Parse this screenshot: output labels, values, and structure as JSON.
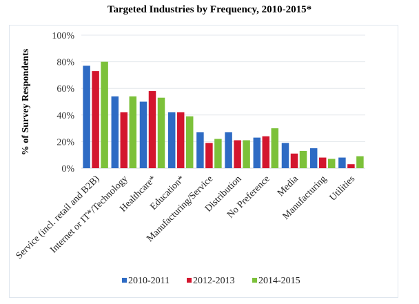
{
  "chart_data": {
    "type": "bar",
    "title": "Targeted Industries by Frequency, 2010-2015*",
    "xlabel": "",
    "ylabel": "% of Survey Respondents",
    "ylim": [
      0,
      100
    ],
    "yticks": [
      "0%",
      "20%",
      "40%",
      "60%",
      "80%",
      "100%"
    ],
    "ytick_values": [
      0,
      20,
      40,
      60,
      80,
      100
    ],
    "grid": true,
    "legend_position": "bottom",
    "categories": [
      "Service (incl. retail and B2B)",
      "Internet or IT*/Technology",
      "Healthcare*",
      "Education*",
      "Manufacturing/Service",
      "Distribution",
      "No Preference",
      "Media",
      "Manufacturing",
      "Utilities"
    ],
    "series": [
      {
        "name": "2010-2011",
        "color": "#2e6bc4",
        "values": [
          77,
          54,
          50,
          42,
          27,
          27,
          23,
          19,
          15,
          8
        ]
      },
      {
        "name": "2012-2013",
        "color": "#d3162e",
        "values": [
          73,
          42,
          58,
          42,
          19,
          21,
          24,
          11,
          8,
          3
        ]
      },
      {
        "name": "2014-2015",
        "color": "#7cc13a",
        "values": [
          80,
          54,
          53,
          39,
          22,
          21,
          30,
          13,
          7,
          9
        ]
      }
    ]
  }
}
